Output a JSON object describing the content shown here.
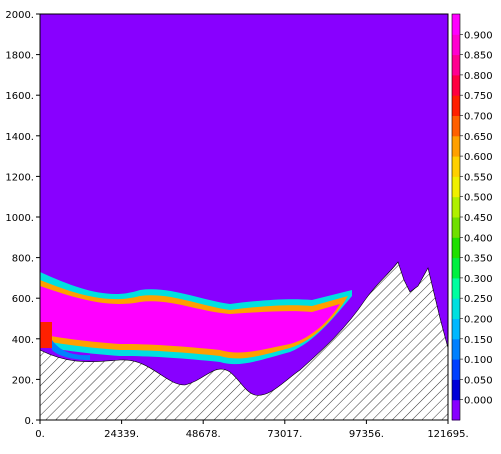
{
  "chart_data": {
    "type": "heatmap",
    "title": "",
    "xlabel": "",
    "ylabel": "",
    "x_ticks": [
      "0.",
      "24339.",
      "48678.",
      "73017.",
      "97356.",
      "121695."
    ],
    "y_ticks": [
      "0.",
      "200.",
      "400.",
      "600.",
      "800.",
      "1000.",
      "1200.",
      "1400.",
      "1600.",
      "1800.",
      "2000."
    ],
    "xlim": [
      0,
      121695
    ],
    "ylim": [
      0,
      2000
    ],
    "colorbar": {
      "labels": [
        "0.000",
        "0.050",
        "0.100",
        "0.150",
        "0.200",
        "0.250",
        "0.300",
        "0.350",
        "0.400",
        "0.450",
        "0.500",
        "0.550",
        "0.600",
        "0.650",
        "0.700",
        "0.750",
        "0.800",
        "0.850",
        "0.900"
      ],
      "colors": [
        "#8800ff",
        "#0000d8",
        "#0040ff",
        "#0080ff",
        "#00b8ff",
        "#00e0e0",
        "#00ffa0",
        "#00f040",
        "#20e000",
        "#70e000",
        "#b0f000",
        "#f0f000",
        "#ffd000",
        "#ffa000",
        "#ff6000",
        "#ff2000",
        "#ff0040",
        "#ff0090",
        "#ff00d0",
        "#ff00ff"
      ]
    },
    "background_value": "0.000",
    "background_color": "#8800ff",
    "plume_core_color": "#ff00ff",
    "terrain_hatched": true
  }
}
